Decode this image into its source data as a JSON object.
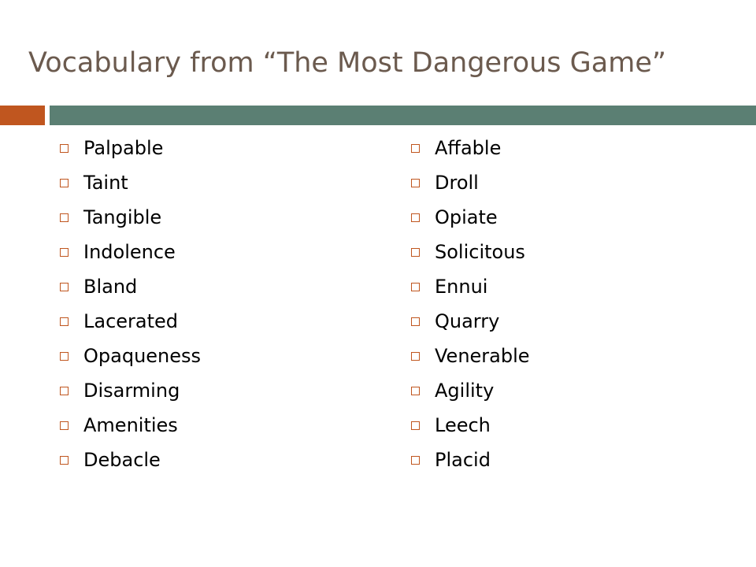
{
  "slide": {
    "title": "Vocabulary from “The Most Dangerous Game”"
  },
  "colors": {
    "title": "#6b5a4e",
    "accent_orange": "#c0561f",
    "accent_green": "#5b7f73",
    "text": "#000000"
  },
  "bullet_icon": "square-outline-icon",
  "left_words": [
    "Palpable",
    "Taint",
    "Tangible",
    "Indolence",
    "Bland",
    "Lacerated",
    "Opaqueness",
    "Disarming",
    "Amenities",
    "Debacle"
  ],
  "right_words": [
    "Affable",
    "Droll",
    "Opiate",
    "Solicitous",
    "Ennui",
    "Quarry",
    "Venerable",
    "Agility",
    "Leech",
    "Placid"
  ]
}
